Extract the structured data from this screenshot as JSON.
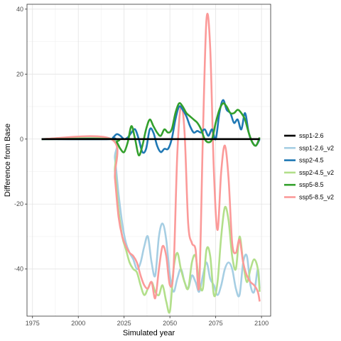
{
  "chart_data": {
    "type": "line",
    "title": "",
    "xlabel": "Simulated year",
    "ylabel": "Difference from Base",
    "xlim": [
      1972,
      2105
    ],
    "ylim": [
      -54.5,
      41.5
    ],
    "xticks": [
      1975,
      2000,
      2025,
      2050,
      2075,
      2100
    ],
    "yticks": [
      40,
      20,
      0,
      -20,
      -40
    ],
    "grid": true,
    "legend_position": "right",
    "series": [
      {
        "name": "ssp1-2.6",
        "color": "#000000",
        "x": [
          1980,
          2099
        ],
        "y": [
          0,
          0
        ]
      },
      {
        "name": "ssp1-2.6_v2",
        "color": "#a6cee3",
        "x": [
          1980,
          2018,
          2020,
          2022,
          2024,
          2026,
          2028,
          2030,
          2032,
          2034,
          2036,
          2038,
          2040,
          2042,
          2044,
          2046,
          2048,
          2050,
          2052,
          2054,
          2056,
          2058,
          2060,
          2062,
          2064,
          2066,
          2068,
          2070,
          2072,
          2074,
          2076,
          2078,
          2080,
          2082,
          2084,
          2086,
          2088,
          2090,
          2092,
          2094,
          2096,
          2098,
          2099
        ],
        "y": [
          0,
          0,
          -6,
          -17,
          -26,
          -32,
          -35,
          -37,
          -40,
          -38,
          -33,
          -30,
          -38,
          -42,
          -30,
          -26,
          -31,
          -42,
          -47,
          -43,
          -40,
          -44,
          -46,
          -42,
          -44,
          -47,
          -42,
          -38,
          -43,
          -45,
          -48,
          -45,
          -40,
          -38,
          -40,
          -46,
          -48,
          -38,
          -36,
          -45,
          -47,
          -40,
          -46
        ]
      },
      {
        "name": "ssp2-4.5",
        "color": "#1f78b4",
        "x": [
          1980,
          2017,
          2019,
          2021,
          2023,
          2025,
          2027,
          2029,
          2031,
          2033,
          2035,
          2037,
          2039,
          2041,
          2043,
          2045,
          2047,
          2049,
          2051,
          2053,
          2055,
          2057,
          2059,
          2061,
          2063,
          2065,
          2067,
          2069,
          2071,
          2073,
          2075,
          2077,
          2079,
          2081,
          2083,
          2085,
          2087,
          2089,
          2091,
          2093,
          2095,
          2097,
          2099
        ],
        "y": [
          0,
          0,
          0.5,
          1.5,
          1,
          0,
          0.5,
          2,
          3,
          0,
          -4,
          -3,
          3,
          2,
          -2,
          -4,
          -3,
          -3,
          0,
          6,
          10,
          9,
          7,
          4,
          2,
          2.5,
          2,
          3,
          1,
          3,
          0,
          8,
          12,
          9,
          8,
          5,
          6,
          3,
          8,
          2,
          -1,
          -2,
          0
        ]
      },
      {
        "name": "ssp2-4.5_v2",
        "color": "#b2df8a",
        "x": [
          1980,
          2018,
          2020,
          2022,
          2024,
          2026,
          2028,
          2030,
          2032,
          2034,
          2036,
          2038,
          2040,
          2042,
          2044,
          2046,
          2048,
          2050,
          2052,
          2054,
          2056,
          2058,
          2060,
          2062,
          2064,
          2066,
          2068,
          2070,
          2072,
          2074,
          2076,
          2078,
          2080,
          2082,
          2084,
          2086,
          2088,
          2090,
          2092,
          2094,
          2096,
          2098,
          2099
        ],
        "y": [
          0,
          0,
          -10,
          -22,
          -30,
          -34,
          -38,
          -40,
          -41,
          -45,
          -48,
          -46,
          -44,
          -47,
          -48,
          -45,
          -50,
          -53,
          -40,
          -35,
          -40,
          -44,
          -46,
          -38,
          -36,
          -44,
          -46,
          -34,
          -36,
          -48,
          -44,
          -30,
          -21,
          -25,
          -36,
          -40,
          -30,
          -38,
          -44,
          -40,
          -37,
          -40,
          -47
        ]
      },
      {
        "name": "ssp5-8.5",
        "color": "#33a02c",
        "x": [
          1980,
          2019,
          2021,
          2023,
          2025,
          2027,
          2029,
          2031,
          2033,
          2035,
          2037,
          2039,
          2041,
          2043,
          2045,
          2047,
          2049,
          2051,
          2053,
          2055,
          2057,
          2059,
          2061,
          2063,
          2065,
          2067,
          2069,
          2071,
          2073,
          2075,
          2077,
          2079,
          2081,
          2083,
          2085,
          2087,
          2089,
          2091,
          2093,
          2095,
          2097,
          2099
        ],
        "y": [
          0,
          0,
          -1,
          -3,
          -4,
          -1,
          4,
          0,
          -5,
          -2,
          3,
          6,
          4,
          2,
          1,
          3,
          2,
          3,
          8,
          11,
          10,
          8,
          7,
          6,
          5,
          3,
          0,
          -1,
          0,
          5,
          9,
          11,
          10,
          8,
          8,
          9,
          8,
          6,
          2,
          -1,
          -2,
          0.5
        ]
      },
      {
        "name": "ssp5-8.5_v2",
        "color": "#fb9a99",
        "x": [
          1980,
          2018,
          2020,
          2022,
          2024,
          2026,
          2028,
          2030,
          2032,
          2034,
          2036,
          2038,
          2040,
          2042,
          2044,
          2046,
          2048,
          2050,
          2052,
          2054,
          2056,
          2058,
          2060,
          2062,
          2064,
          2066,
          2068,
          2070,
          2072,
          2074,
          2076,
          2078,
          2080,
          2082,
          2084,
          2086,
          2088,
          2090,
          2092,
          2094,
          2096,
          2098,
          2099
        ],
        "y": [
          0,
          0,
          -12,
          -24,
          -30,
          -33,
          -35,
          -36,
          -38,
          -42,
          -45,
          -46,
          -44,
          -49,
          -40,
          -33,
          -36,
          -45,
          -40,
          -5,
          10,
          2,
          -26,
          -32,
          -34,
          -45,
          1,
          37,
          28,
          -10,
          -28,
          -10,
          -2,
          -12,
          -32,
          -35,
          -31,
          -38,
          -42,
          -44,
          -45,
          -47,
          -50
        ]
      }
    ]
  }
}
